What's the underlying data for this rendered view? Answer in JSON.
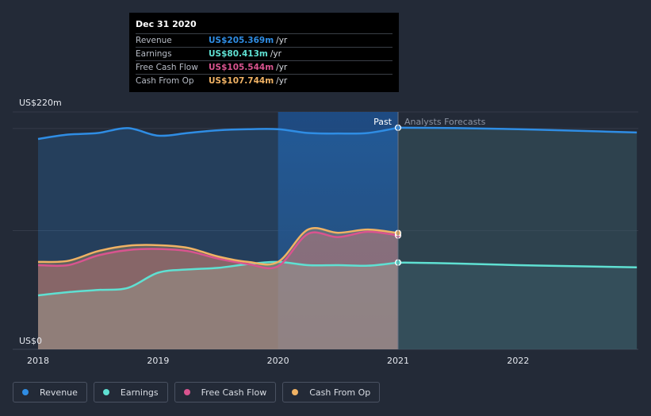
{
  "chart_data": {
    "type": "area",
    "y_unit_labels": {
      "top": "US$220m",
      "bottom": "US$0"
    },
    "ylim": [
      0,
      220
    ],
    "xlim": [
      2018,
      2022.99
    ],
    "x_ticks": [
      "2018",
      "2019",
      "2020",
      "2021",
      "2022"
    ],
    "past_label": "Past",
    "forecast_label": "Analysts Forecasts",
    "past_end_x": 2021.0,
    "highlight_start_x": 2020.0,
    "series": [
      {
        "name": "Revenue",
        "color": "#2f8de4",
        "points": [
          [
            2018.0,
            195
          ],
          [
            2018.25,
            199
          ],
          [
            2018.5,
            200.5
          ],
          [
            2018.75,
            205
          ],
          [
            2019.0,
            198
          ],
          [
            2019.25,
            200.5
          ],
          [
            2019.5,
            203
          ],
          [
            2019.75,
            204
          ],
          [
            2020.0,
            204
          ],
          [
            2020.25,
            200.5
          ],
          [
            2020.5,
            200
          ],
          [
            2020.75,
            200.5
          ],
          [
            2021.0,
            205.369
          ]
        ],
        "forecast": [
          [
            2021.0,
            205.369
          ],
          [
            2021.5,
            205
          ],
          [
            2022.0,
            204
          ],
          [
            2022.5,
            202.5
          ],
          [
            2022.99,
            201
          ]
        ]
      },
      {
        "name": "Earnings",
        "color": "#5fe0d2",
        "points": [
          [
            2018.0,
            50
          ],
          [
            2018.25,
            53
          ],
          [
            2018.5,
            55
          ],
          [
            2018.75,
            57
          ],
          [
            2019.0,
            71
          ],
          [
            2019.25,
            74
          ],
          [
            2019.5,
            75.5
          ],
          [
            2019.75,
            79
          ],
          [
            2020.0,
            81
          ],
          [
            2020.25,
            78
          ],
          [
            2020.5,
            78
          ],
          [
            2020.75,
            77.5
          ],
          [
            2021.0,
            80.413
          ]
        ],
        "forecast": [
          [
            2021.0,
            80.413
          ],
          [
            2021.5,
            79.5
          ],
          [
            2022.0,
            78
          ],
          [
            2022.5,
            77
          ],
          [
            2022.99,
            76
          ]
        ]
      },
      {
        "name": "Free Cash Flow",
        "color": "#d9548f",
        "points": [
          [
            2018.0,
            78
          ],
          [
            2018.25,
            78
          ],
          [
            2018.5,
            87
          ],
          [
            2018.75,
            92
          ],
          [
            2019.0,
            93
          ],
          [
            2019.25,
            91
          ],
          [
            2019.5,
            84
          ],
          [
            2019.75,
            79
          ],
          [
            2020.0,
            77
          ],
          [
            2020.25,
            107
          ],
          [
            2020.5,
            104
          ],
          [
            2020.75,
            109
          ],
          [
            2021.0,
            105.544
          ]
        ],
        "forecast": []
      },
      {
        "name": "Cash From Op",
        "color": "#f0b264",
        "points": [
          [
            2018.0,
            81
          ],
          [
            2018.25,
            82
          ],
          [
            2018.5,
            91
          ],
          [
            2018.75,
            96
          ],
          [
            2019.0,
            96.5
          ],
          [
            2019.25,
            94
          ],
          [
            2019.5,
            86
          ],
          [
            2019.75,
            81
          ],
          [
            2020.0,
            81
          ],
          [
            2020.25,
            111
          ],
          [
            2020.5,
            108
          ],
          [
            2020.75,
            111
          ],
          [
            2021.0,
            107.744
          ]
        ],
        "forecast": []
      }
    ]
  },
  "tooltip": {
    "date": "Dec 31 2020",
    "rows": [
      {
        "label": "Revenue",
        "value": "US$205.369m",
        "unit": "/yr",
        "color": "#2f8de4"
      },
      {
        "label": "Earnings",
        "value": "US$80.413m",
        "unit": "/yr",
        "color": "#5fe0d2"
      },
      {
        "label": "Free Cash Flow",
        "value": "US$105.544m",
        "unit": "/yr",
        "color": "#d9548f"
      },
      {
        "label": "Cash From Op",
        "value": "US$107.744m",
        "unit": "/yr",
        "color": "#f0b264"
      }
    ]
  },
  "legend": [
    {
      "label": "Revenue",
      "color": "#2f8de4"
    },
    {
      "label": "Earnings",
      "color": "#5fe0d2"
    },
    {
      "label": "Free Cash Flow",
      "color": "#d9548f"
    },
    {
      "label": "Cash From Op",
      "color": "#f0b264"
    }
  ]
}
